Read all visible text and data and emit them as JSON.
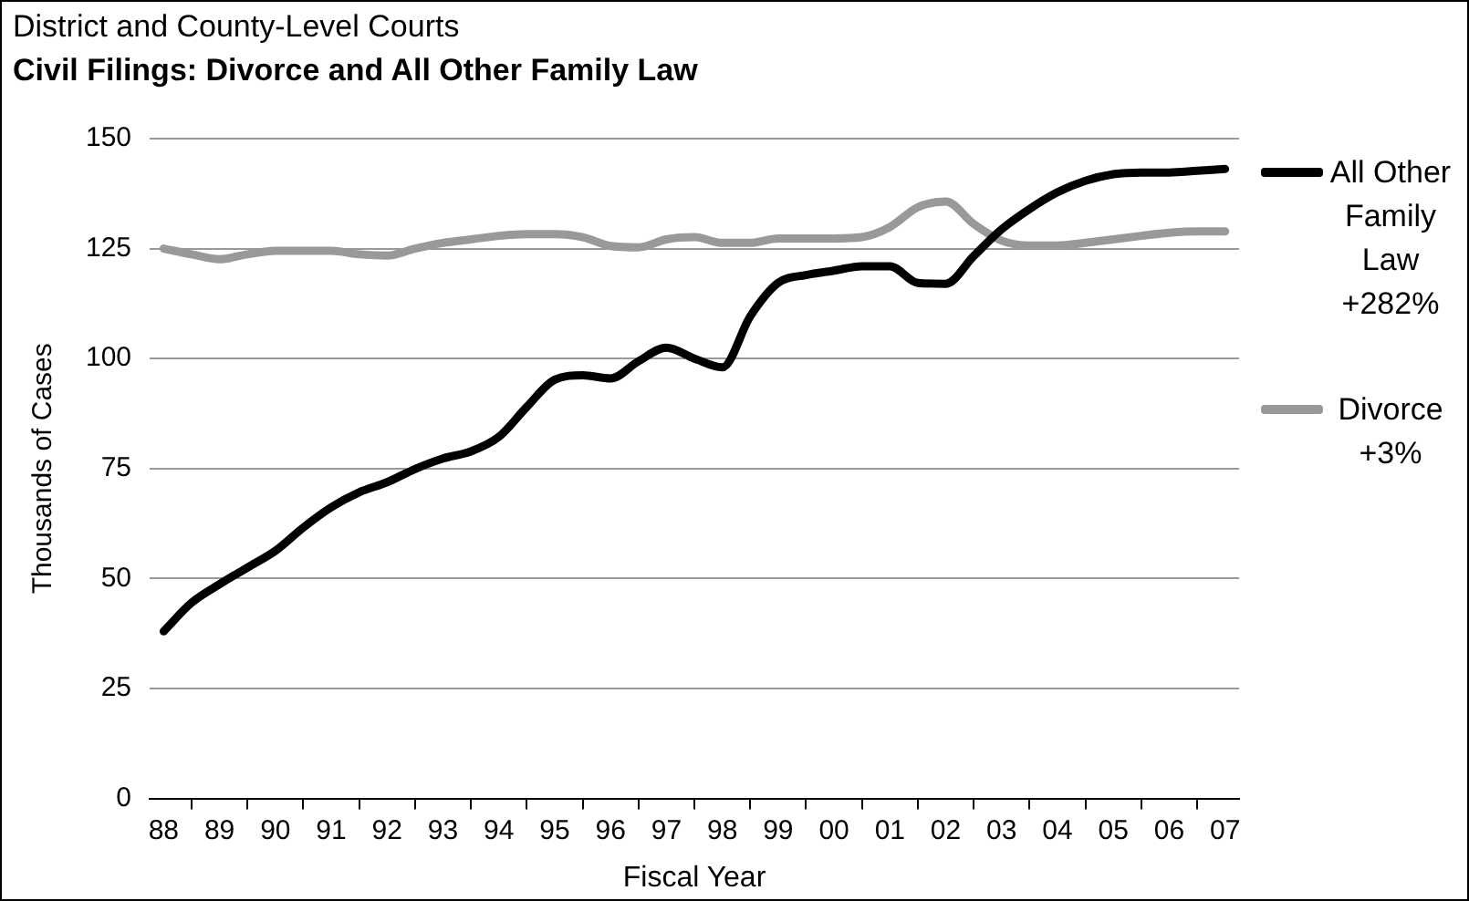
{
  "chart_data": {
    "type": "line",
    "title": "District and County-Level Courts",
    "subtitle": "Civil Filings: Divorce and All Other Family Law",
    "xlabel": "Fiscal Year",
    "ylabel": "Thousands of Cases",
    "categories": [
      "88",
      null,
      "89",
      null,
      "90",
      null,
      "91",
      null,
      "92",
      null,
      "93",
      null,
      "94",
      null,
      "95",
      null,
      "96",
      null,
      "97",
      null,
      "98",
      null,
      "99",
      null,
      "00",
      null,
      "01",
      null,
      "02",
      null,
      "03",
      null,
      "04",
      null,
      "05",
      null,
      "06",
      null,
      "07"
    ],
    "series": [
      {
        "name": "All Other Family Law +282%",
        "color": "#000000",
        "values": [
          38,
          44.5,
          48.7,
          52.5,
          56.3,
          61.6,
          66.2,
          69.6,
          71.9,
          74.9,
          77.3,
          78.9,
          82.2,
          89,
          95.2,
          96.2,
          95.5,
          99.4,
          102.5,
          100,
          98,
          109.6,
          117.2,
          119,
          120,
          121,
          121,
          117.2,
          117,
          123.3,
          129.4,
          134,
          137.8,
          140.4,
          141.9,
          142.3,
          142.3,
          142.7,
          143.1
        ]
      },
      {
        "name": "Divorce +3%",
        "color": "#999999",
        "values": [
          125,
          123.7,
          122.6,
          123.7,
          124.5,
          124.5,
          124.5,
          123.7,
          123.4,
          125,
          126.3,
          127.1,
          127.9,
          128.3,
          128.3,
          127.6,
          125.6,
          125.3,
          127.1,
          127.6,
          126.3,
          126.3,
          127.3,
          127.3,
          127.3,
          127.6,
          129.9,
          134.4,
          135.7,
          130.6,
          126.8,
          125.7,
          125.7,
          126.3,
          127.1,
          127.9,
          128.6,
          128.9,
          128.9
        ]
      }
    ],
    "ylim": [
      0,
      150
    ],
    "yticks": [
      0,
      25,
      50,
      75,
      100,
      125,
      150
    ],
    "grid": "y",
    "legend": "right",
    "marker": "none",
    "line_style": "solid"
  }
}
